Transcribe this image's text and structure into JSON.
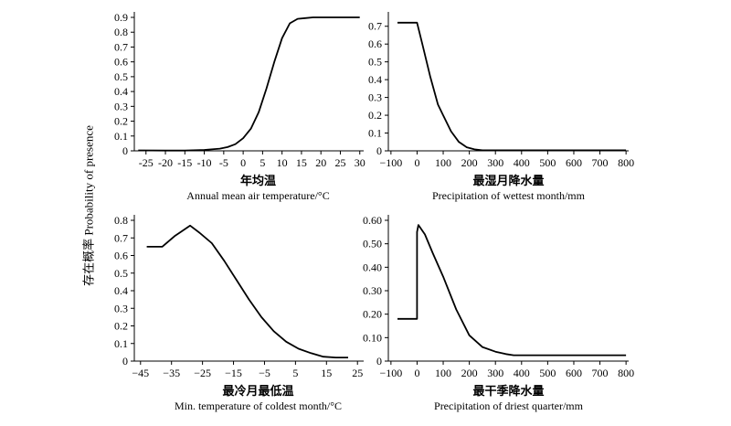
{
  "ylabel": "存在概率  Probability of presence",
  "chart_data": [
    {
      "type": "line",
      "title_cn": "年均温",
      "xlabel": "Annual mean air temperature/°C",
      "xlim": [
        -28,
        31
      ],
      "ylim": [
        0,
        0.9
      ],
      "xticks": [
        -25,
        -20,
        -15,
        -10,
        -5,
        0,
        5,
        10,
        15,
        20,
        25,
        30
      ],
      "xtick_labels": [
        "-25",
        "-20",
        "-15",
        "-10",
        "-5",
        "0",
        "5",
        "10",
        "15",
        "20",
        "25",
        "30"
      ],
      "yticks": [
        0,
        0.1,
        0.2,
        0.3,
        0.4,
        0.5,
        0.6,
        0.7,
        0.8,
        0.9
      ],
      "ytick_labels": [
        "0",
        "0.1",
        "0.2",
        "0.3",
        "0.4",
        "0.5",
        "0.6",
        "0.7",
        "0.8",
        "0.9"
      ],
      "series": [
        {
          "x": [
            -27,
            -20,
            -15,
            -10,
            -6,
            -4,
            -2,
            0,
            2,
            4,
            6,
            8,
            10,
            12,
            14,
            16,
            18,
            20,
            30
          ],
          "y": [
            0.003,
            0.002,
            0.002,
            0.006,
            0.015,
            0.025,
            0.045,
            0.085,
            0.15,
            0.26,
            0.42,
            0.6,
            0.76,
            0.86,
            0.89,
            0.895,
            0.9,
            0.9,
            0.9
          ]
        }
      ]
    },
    {
      "type": "line",
      "title_cn": "最湿月降水量",
      "xlabel": "Precipitation of wettest month/mm",
      "xlim": [
        -110,
        810
      ],
      "ylim": [
        0,
        0.75
      ],
      "xticks": [
        -100,
        0,
        100,
        200,
        300,
        400,
        500,
        600,
        700,
        800
      ],
      "xtick_labels": [
        "−100",
        "0",
        "100",
        "200",
        "300",
        "400",
        "500",
        "600",
        "700",
        "800"
      ],
      "yticks": [
        0,
        0.1,
        0.2,
        0.3,
        0.4,
        0.5,
        0.6,
        0.7
      ],
      "ytick_labels": [
        "0",
        "0.1",
        "0.2",
        "0.3",
        "0.4",
        "0.5",
        "0.6",
        "0.7"
      ],
      "series": [
        {
          "x": [
            -75,
            -5,
            0,
            20,
            50,
            80,
            100,
            130,
            160,
            190,
            220,
            250,
            800
          ],
          "y": [
            0.72,
            0.72,
            0.72,
            0.6,
            0.42,
            0.26,
            0.2,
            0.11,
            0.05,
            0.02,
            0.008,
            0.003,
            0.003
          ]
        }
      ]
    },
    {
      "type": "line",
      "title_cn": "最冷月最低温",
      "xlabel": "Min. temperature of coldest month/°C",
      "xlim": [
        -47,
        27
      ],
      "ylim": [
        0,
        0.8
      ],
      "xticks": [
        -45,
        -35,
        -25,
        -15,
        -5,
        5,
        15,
        25
      ],
      "xtick_labels": [
        "−45",
        "−35",
        "−25",
        "−15",
        "−5",
        "5",
        "15",
        "25"
      ],
      "yticks": [
        0,
        0.1,
        0.2,
        0.3,
        0.4,
        0.5,
        0.6,
        0.7,
        0.8
      ],
      "ytick_labels": [
        "0",
        "0.1",
        "0.2",
        "0.3",
        "0.4",
        "0.5",
        "0.6",
        "0.7",
        "0.8"
      ],
      "series": [
        {
          "x": [
            -43,
            -38,
            -34,
            -29,
            -26,
            -22,
            -18,
            -14,
            -10,
            -6,
            -2,
            2,
            6,
            10,
            14,
            18,
            22
          ],
          "y": [
            0.65,
            0.65,
            0.71,
            0.77,
            0.73,
            0.67,
            0.57,
            0.46,
            0.35,
            0.25,
            0.17,
            0.11,
            0.07,
            0.045,
            0.025,
            0.02,
            0.02
          ]
        }
      ]
    },
    {
      "type": "line",
      "title_cn": "最干季降水量",
      "xlabel": "Precipitation of driest quarter/mm",
      "xlim": [
        -110,
        810
      ],
      "ylim": [
        0,
        0.6
      ],
      "xticks": [
        -100,
        0,
        100,
        200,
        300,
        400,
        500,
        600,
        700,
        800
      ],
      "xtick_labels": [
        "−100",
        "0",
        "100",
        "200",
        "300",
        "400",
        "500",
        "600",
        "700",
        "800"
      ],
      "yticks": [
        0,
        0.1,
        0.2,
        0.3,
        0.4,
        0.5,
        0.6
      ],
      "ytick_labels": [
        "0",
        "0.10",
        "0.20",
        "0.30",
        "0.40",
        "0.50",
        "0.60"
      ],
      "series": [
        {
          "x": [
            -75,
            -5,
            0,
            0,
            5,
            30,
            60,
            100,
            150,
            200,
            250,
            300,
            340,
            370,
            800
          ],
          "y": [
            0.18,
            0.18,
            0.18,
            0.55,
            0.58,
            0.54,
            0.46,
            0.36,
            0.22,
            0.11,
            0.06,
            0.04,
            0.03,
            0.025,
            0.025
          ]
        }
      ]
    }
  ]
}
